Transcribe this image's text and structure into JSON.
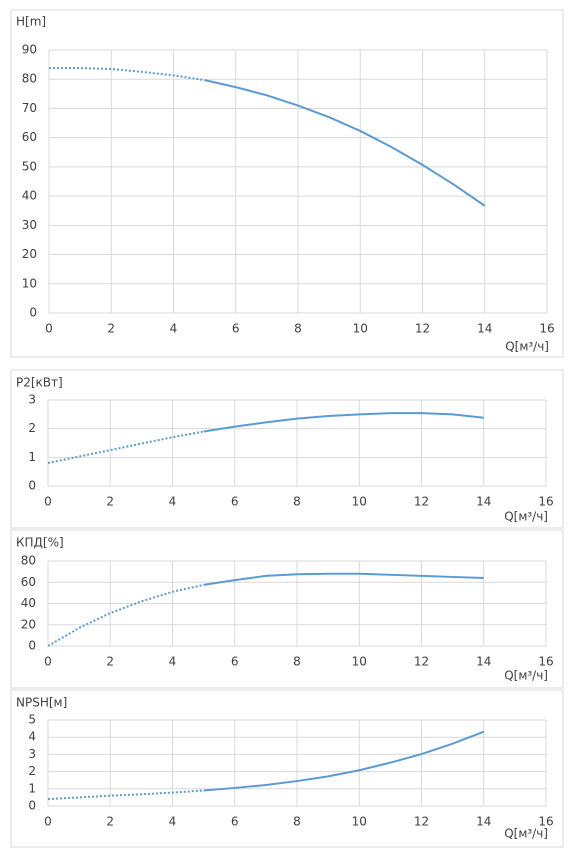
{
  "chart_data": [
    {
      "type": "line",
      "title": "H[m]",
      "x_label": "Q[м³/ч]",
      "x": [
        0,
        1,
        2,
        3,
        4,
        5,
        6,
        7,
        8,
        9,
        10,
        11,
        12,
        13,
        14
      ],
      "series": [
        {
          "color": "#5b9bd5",
          "values": [
            83.8,
            83.8,
            83.5,
            82.5,
            81.3,
            79.7,
            77.3,
            74.5,
            71,
            67,
            62.3,
            56.8,
            50.7,
            44,
            36.7
          ]
        }
      ],
      "dotted_until": 5,
      "xlim": [
        0,
        16
      ],
      "xticks": [
        0,
        2,
        4,
        6,
        8,
        10,
        12,
        14,
        16
      ],
      "ylim": [
        0,
        90
      ],
      "yticks": [
        0,
        10,
        20,
        30,
        40,
        50,
        60,
        70,
        80,
        90
      ],
      "grid": true
    },
    {
      "type": "line",
      "title": "P2[кВт]",
      "x_label": "Q[м³/ч]",
      "x": [
        0,
        1,
        2,
        3,
        4,
        5,
        6,
        7,
        8,
        9,
        10,
        11,
        12,
        13,
        14
      ],
      "series": [
        {
          "color": "#5b9bd5",
          "values": [
            0.8,
            1.03,
            1.25,
            1.48,
            1.7,
            1.9,
            2.07,
            2.22,
            2.35,
            2.44,
            2.5,
            2.54,
            2.54,
            2.5,
            2.38
          ]
        }
      ],
      "dotted_until": 5,
      "xlim": [
        0,
        16
      ],
      "xticks": [
        0,
        2,
        4,
        6,
        8,
        10,
        12,
        14,
        16
      ],
      "ylim": [
        0,
        3
      ],
      "yticks": [
        0,
        1,
        2,
        3
      ],
      "grid": true
    },
    {
      "type": "line",
      "title": "КПД[%]",
      "x_label": "Q[м³/ч]",
      "x": [
        0,
        1,
        2,
        3,
        4,
        5,
        6,
        7,
        8,
        9,
        10,
        11,
        12,
        13,
        14
      ],
      "series": [
        {
          "color": "#5b9bd5",
          "values": [
            0,
            17,
            31,
            42,
            51,
            57.5,
            62,
            66,
            67.5,
            68,
            68,
            67,
            66,
            65,
            64
          ]
        }
      ],
      "dotted_until": 5,
      "xlim": [
        0,
        16
      ],
      "xticks": [
        0,
        2,
        4,
        6,
        8,
        10,
        12,
        14,
        16
      ],
      "ylim": [
        0,
        80
      ],
      "yticks": [
        0,
        20,
        40,
        60,
        80
      ],
      "grid": true
    },
    {
      "type": "line",
      "title": "NPSH[м]",
      "x_label": "Q[м³/ч]",
      "x": [
        0,
        1,
        2,
        3,
        4,
        5,
        6,
        7,
        8,
        9,
        10,
        11,
        12,
        13,
        14
      ],
      "series": [
        {
          "color": "#5b9bd5",
          "values": [
            0.4,
            0.5,
            0.6,
            0.68,
            0.78,
            0.9,
            1.05,
            1.22,
            1.45,
            1.72,
            2.08,
            2.52,
            3.02,
            3.62,
            4.32
          ]
        }
      ],
      "dotted_until": 5,
      "xlim": [
        0,
        16
      ],
      "xticks": [
        0,
        2,
        4,
        6,
        8,
        10,
        12,
        14,
        16
      ],
      "ylim": [
        0,
        5
      ],
      "yticks": [
        0,
        1,
        2,
        3,
        4,
        5
      ],
      "grid": true
    }
  ]
}
